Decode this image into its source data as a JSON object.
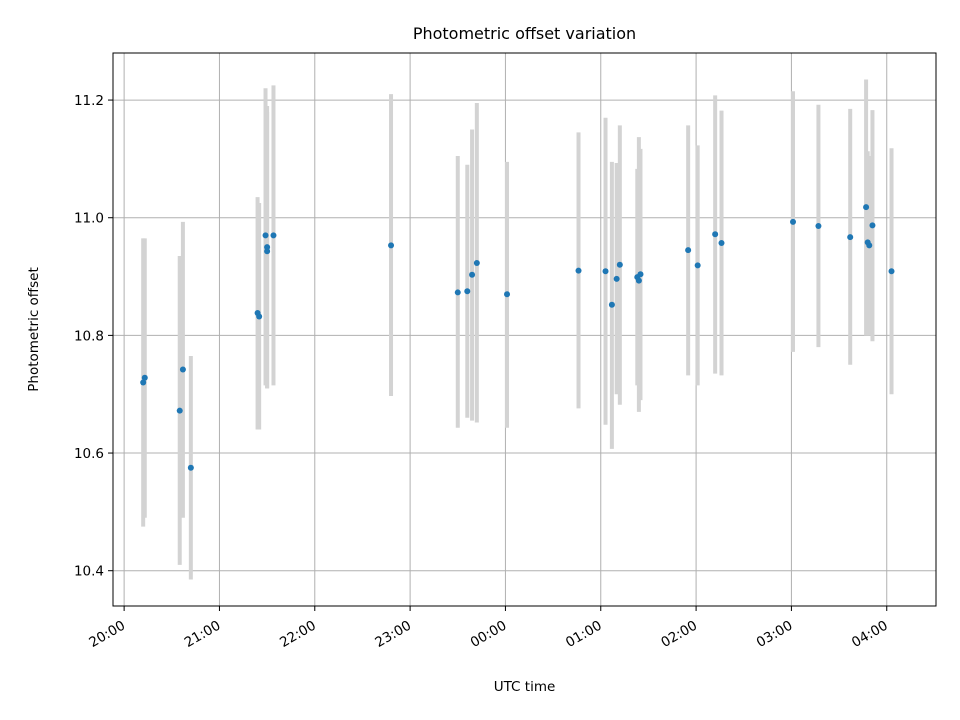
{
  "chart_data": {
    "type": "scatter",
    "title": "Photometric offset variation",
    "xlabel": "UTC time",
    "ylabel": "Photometric offset",
    "x_ticks": [
      "20:00",
      "21:00",
      "22:00",
      "23:00",
      "00:00",
      "01:00",
      "02:00",
      "03:00",
      "04:00"
    ],
    "y_ticks": [
      "10.4",
      "10.6",
      "10.8",
      "11.0",
      "11.2"
    ],
    "xlim": [
      "19:53",
      "04:31"
    ],
    "ylim": [
      10.34,
      11.28
    ],
    "grid": true,
    "colors": {
      "point": "#1f77b4",
      "errorbar": "#d3d3d3",
      "grid": "#b0b0b0"
    },
    "points": [
      {
        "x": "20:12",
        "y": 10.72,
        "lo": 10.475,
        "hi": 10.965
      },
      {
        "x": "20:13",
        "y": 10.728,
        "lo": 10.49,
        "hi": 10.965
      },
      {
        "x": "20:35",
        "y": 10.672,
        "lo": 10.41,
        "hi": 10.935
      },
      {
        "x": "20:37",
        "y": 10.742,
        "lo": 10.49,
        "hi": 10.993
      },
      {
        "x": "20:42",
        "y": 10.575,
        "lo": 10.385,
        "hi": 10.765
      },
      {
        "x": "21:24",
        "y": 10.838,
        "lo": 10.64,
        "hi": 11.035
      },
      {
        "x": "21:25",
        "y": 10.832,
        "lo": 10.64,
        "hi": 11.025
      },
      {
        "x": "21:29",
        "y": 10.97,
        "lo": 10.715,
        "hi": 11.22
      },
      {
        "x": "21:30",
        "y": 10.95,
        "lo": 10.71,
        "hi": 11.19
      },
      {
        "x": "21:30",
        "y": 10.943,
        "lo": 10.71,
        "hi": 11.18
      },
      {
        "x": "21:34",
        "y": 10.97,
        "lo": 10.715,
        "hi": 11.225
      },
      {
        "x": "22:48",
        "y": 10.953,
        "lo": 10.697,
        "hi": 11.21
      },
      {
        "x": "23:30",
        "y": 10.873,
        "lo": 10.643,
        "hi": 11.105
      },
      {
        "x": "23:36",
        "y": 10.875,
        "lo": 10.66,
        "hi": 11.09
      },
      {
        "x": "23:39",
        "y": 10.903,
        "lo": 10.655,
        "hi": 11.15
      },
      {
        "x": "23:42",
        "y": 10.923,
        "lo": 10.652,
        "hi": 11.195
      },
      {
        "x": "00:01",
        "y": 10.87,
        "lo": 10.643,
        "hi": 11.095
      },
      {
        "x": "00:46",
        "y": 10.91,
        "lo": 10.676,
        "hi": 11.145
      },
      {
        "x": "01:03",
        "y": 10.909,
        "lo": 10.648,
        "hi": 11.17
      },
      {
        "x": "01:07",
        "y": 10.852,
        "lo": 10.607,
        "hi": 11.095
      },
      {
        "x": "01:10",
        "y": 10.896,
        "lo": 10.7,
        "hi": 11.093
      },
      {
        "x": "01:12",
        "y": 10.92,
        "lo": 10.682,
        "hi": 11.157
      },
      {
        "x": "01:23",
        "y": 10.899,
        "lo": 10.715,
        "hi": 11.083
      },
      {
        "x": "01:24",
        "y": 10.893,
        "lo": 10.67,
        "hi": 11.137
      },
      {
        "x": "01:25",
        "y": 10.904,
        "lo": 10.69,
        "hi": 11.117
      },
      {
        "x": "01:55",
        "y": 10.945,
        "lo": 10.732,
        "hi": 11.157
      },
      {
        "x": "02:01",
        "y": 10.919,
        "lo": 10.715,
        "hi": 11.123
      },
      {
        "x": "02:12",
        "y": 10.972,
        "lo": 10.735,
        "hi": 11.208
      },
      {
        "x": "02:16",
        "y": 10.957,
        "lo": 10.732,
        "hi": 11.182
      },
      {
        "x": "03:01",
        "y": 10.993,
        "lo": 10.772,
        "hi": 11.215
      },
      {
        "x": "03:17",
        "y": 10.986,
        "lo": 10.78,
        "hi": 11.192
      },
      {
        "x": "03:37",
        "y": 10.967,
        "lo": 10.75,
        "hi": 11.185
      },
      {
        "x": "03:47",
        "y": 11.018,
        "lo": 10.8,
        "hi": 11.235
      },
      {
        "x": "03:48",
        "y": 10.958,
        "lo": 10.8,
        "hi": 11.113
      },
      {
        "x": "03:49",
        "y": 10.953,
        "lo": 10.8,
        "hi": 11.105
      },
      {
        "x": "03:51",
        "y": 10.987,
        "lo": 10.79,
        "hi": 11.183
      },
      {
        "x": "04:03",
        "y": 10.909,
        "lo": 10.7,
        "hi": 11.118
      }
    ]
  }
}
